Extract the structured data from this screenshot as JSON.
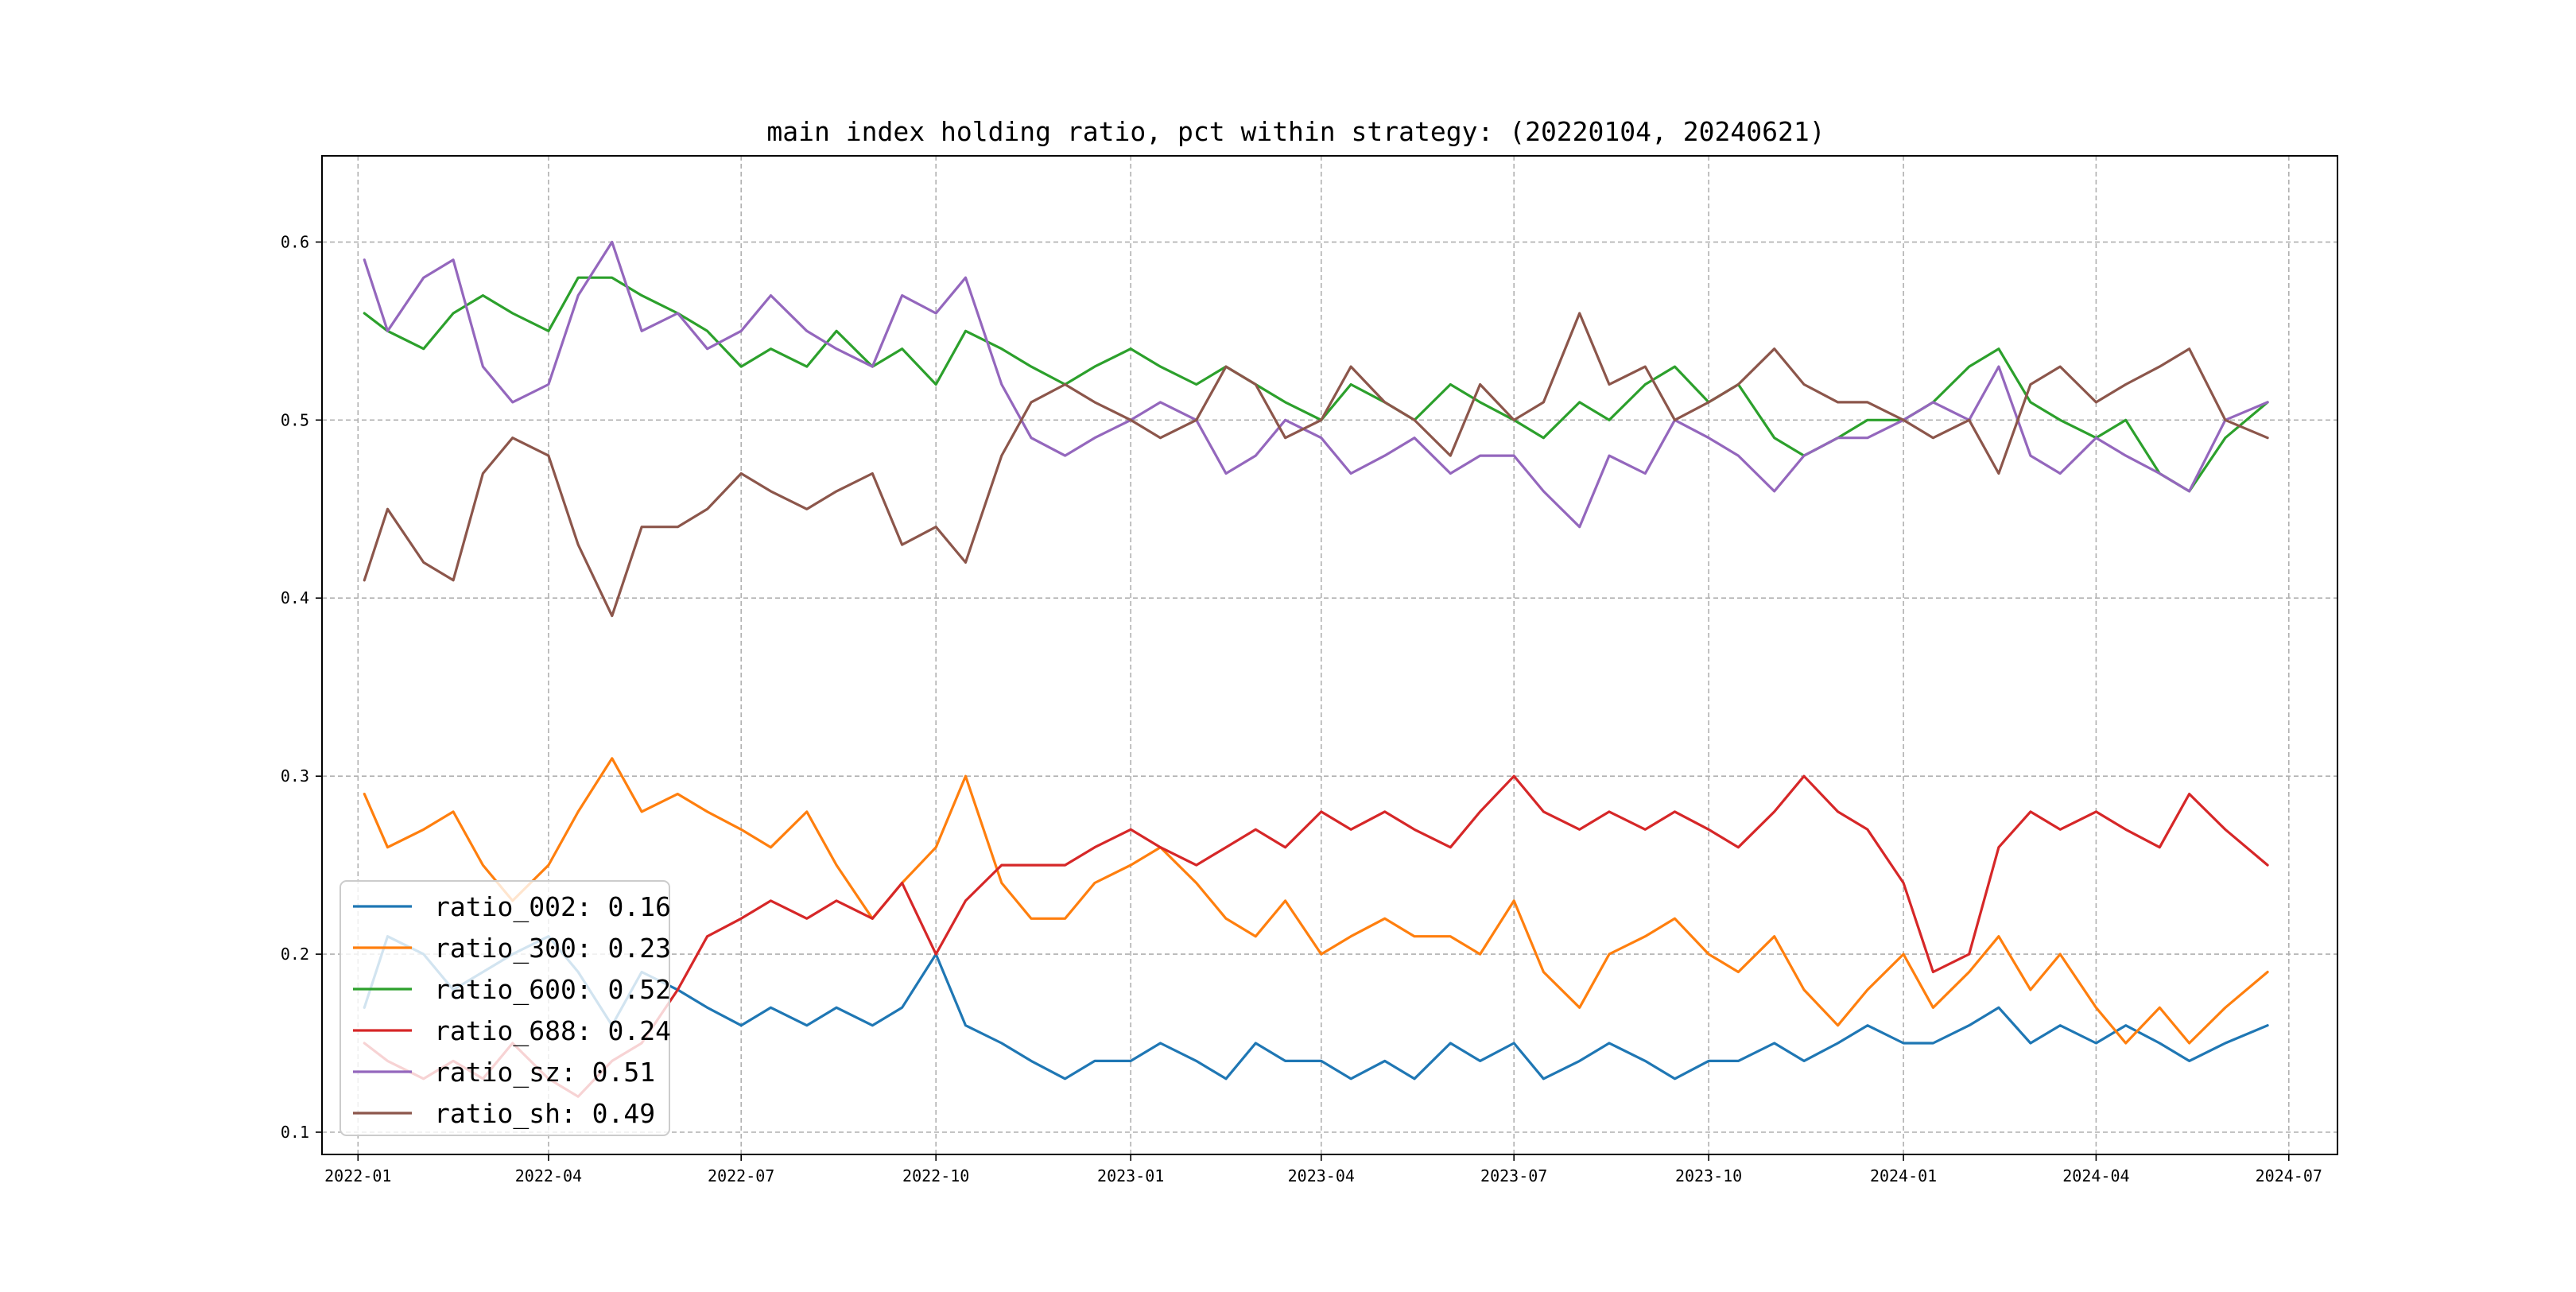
{
  "chart_data": {
    "type": "line",
    "title": "main index holding ratio, pct within strategy: (20220104, 20240621)",
    "xlabel": "",
    "ylabel": "",
    "x_range": [
      "2021-12-15",
      "2024-07-24"
    ],
    "ylim": [
      0.0875,
      0.6484
    ],
    "grid": true,
    "legend_position": "lower-left",
    "x_ticks": [
      {
        "date": "2022-01-01",
        "label": "2022-01"
      },
      {
        "date": "2022-04-01",
        "label": "2022-04"
      },
      {
        "date": "2022-07-01",
        "label": "2022-07"
      },
      {
        "date": "2022-10-01",
        "label": "2022-10"
      },
      {
        "date": "2023-01-01",
        "label": "2023-01"
      },
      {
        "date": "2023-04-01",
        "label": "2023-04"
      },
      {
        "date": "2023-07-01",
        "label": "2023-07"
      },
      {
        "date": "2023-10-01",
        "label": "2023-10"
      },
      {
        "date": "2024-01-01",
        "label": "2024-01"
      },
      {
        "date": "2024-04-01",
        "label": "2024-04"
      },
      {
        "date": "2024-07-01",
        "label": "2024-07"
      }
    ],
    "y_ticks": [
      {
        "value": 0.1,
        "label": "0.1"
      },
      {
        "value": 0.2,
        "label": "0.2"
      },
      {
        "value": 0.3,
        "label": "0.3"
      },
      {
        "value": 0.4,
        "label": "0.4"
      },
      {
        "value": 0.5,
        "label": "0.5"
      },
      {
        "value": 0.6,
        "label": "0.6"
      }
    ],
    "dates": [
      "2022-01-04",
      "2022-01-15",
      "2022-02-01",
      "2022-02-15",
      "2022-03-01",
      "2022-03-15",
      "2022-04-01",
      "2022-04-15",
      "2022-05-01",
      "2022-05-15",
      "2022-06-01",
      "2022-06-15",
      "2022-07-01",
      "2022-07-15",
      "2022-08-01",
      "2022-08-15",
      "2022-09-01",
      "2022-09-15",
      "2022-10-01",
      "2022-10-15",
      "2022-11-01",
      "2022-11-15",
      "2022-12-01",
      "2022-12-15",
      "2023-01-01",
      "2023-01-15",
      "2023-02-01",
      "2023-02-15",
      "2023-03-01",
      "2023-03-15",
      "2023-04-01",
      "2023-04-15",
      "2023-05-01",
      "2023-05-15",
      "2023-06-01",
      "2023-06-15",
      "2023-07-01",
      "2023-07-15",
      "2023-08-01",
      "2023-08-15",
      "2023-09-01",
      "2023-09-15",
      "2023-10-01",
      "2023-10-15",
      "2023-11-01",
      "2023-11-15",
      "2023-12-01",
      "2023-12-15",
      "2024-01-01",
      "2024-01-15",
      "2024-02-01",
      "2024-02-15",
      "2024-03-01",
      "2024-03-15",
      "2024-04-01",
      "2024-04-15",
      "2024-05-01",
      "2024-05-15",
      "2024-06-01",
      "2024-06-21"
    ],
    "series": [
      {
        "name": "ratio_002",
        "legend_label": "ratio_002: 0.16",
        "color": "#1f77b4",
        "values": [
          0.17,
          0.21,
          0.2,
          0.18,
          0.19,
          0.2,
          0.21,
          0.19,
          0.16,
          0.19,
          0.18,
          0.17,
          0.16,
          0.17,
          0.16,
          0.17,
          0.16,
          0.17,
          0.2,
          0.16,
          0.15,
          0.14,
          0.13,
          0.14,
          0.14,
          0.15,
          0.14,
          0.13,
          0.15,
          0.14,
          0.14,
          0.13,
          0.14,
          0.13,
          0.15,
          0.14,
          0.15,
          0.13,
          0.14,
          0.15,
          0.14,
          0.13,
          0.14,
          0.14,
          0.15,
          0.14,
          0.15,
          0.16,
          0.15,
          0.15,
          0.16,
          0.17,
          0.15,
          0.16,
          0.15,
          0.16,
          0.15,
          0.14,
          0.15,
          0.16
        ]
      },
      {
        "name": "ratio_300",
        "legend_label": "ratio_300: 0.23",
        "color": "#ff7f0e",
        "values": [
          0.29,
          0.26,
          0.27,
          0.28,
          0.25,
          0.23,
          0.25,
          0.28,
          0.31,
          0.28,
          0.29,
          0.28,
          0.27,
          0.26,
          0.28,
          0.25,
          0.22,
          0.24,
          0.26,
          0.3,
          0.24,
          0.22,
          0.22,
          0.24,
          0.25,
          0.26,
          0.24,
          0.22,
          0.21,
          0.23,
          0.2,
          0.21,
          0.22,
          0.21,
          0.21,
          0.2,
          0.23,
          0.19,
          0.17,
          0.2,
          0.21,
          0.22,
          0.2,
          0.19,
          0.21,
          0.18,
          0.16,
          0.18,
          0.2,
          0.17,
          0.19,
          0.21,
          0.18,
          0.2,
          0.17,
          0.15,
          0.17,
          0.15,
          0.17,
          0.19
        ]
      },
      {
        "name": "ratio_600",
        "legend_label": "ratio_600: 0.52",
        "color": "#2ca02c",
        "values": [
          0.56,
          0.55,
          0.54,
          0.56,
          0.57,
          0.56,
          0.55,
          0.58,
          0.58,
          0.57,
          0.56,
          0.55,
          0.53,
          0.54,
          0.53,
          0.55,
          0.53,
          0.54,
          0.52,
          0.55,
          0.54,
          0.53,
          0.52,
          0.53,
          0.54,
          0.53,
          0.52,
          0.53,
          0.52,
          0.51,
          0.5,
          0.52,
          0.51,
          0.5,
          0.52,
          0.51,
          0.5,
          0.49,
          0.51,
          0.5,
          0.52,
          0.53,
          0.51,
          0.52,
          0.49,
          0.48,
          0.49,
          0.5,
          0.5,
          0.51,
          0.53,
          0.54,
          0.51,
          0.5,
          0.49,
          0.5,
          0.47,
          0.46,
          0.49,
          0.51
        ]
      },
      {
        "name": "ratio_688",
        "legend_label": "ratio_688: 0.24",
        "color": "#d62728",
        "values": [
          0.15,
          0.14,
          0.13,
          0.14,
          0.13,
          0.15,
          0.13,
          0.12,
          0.14,
          0.15,
          0.18,
          0.21,
          0.22,
          0.23,
          0.22,
          0.23,
          0.22,
          0.24,
          0.2,
          0.23,
          0.25,
          0.25,
          0.25,
          0.26,
          0.27,
          0.26,
          0.25,
          0.26,
          0.27,
          0.26,
          0.28,
          0.27,
          0.28,
          0.27,
          0.26,
          0.28,
          0.3,
          0.28,
          0.27,
          0.28,
          0.27,
          0.28,
          0.27,
          0.26,
          0.28,
          0.3,
          0.28,
          0.27,
          0.24,
          0.19,
          0.2,
          0.26,
          0.28,
          0.27,
          0.28,
          0.27,
          0.26,
          0.29,
          0.27,
          0.25
        ]
      },
      {
        "name": "ratio_sz",
        "legend_label": "ratio_sz: 0.51",
        "color": "#9467bd",
        "values": [
          0.59,
          0.55,
          0.58,
          0.59,
          0.53,
          0.51,
          0.52,
          0.57,
          0.6,
          0.55,
          0.56,
          0.54,
          0.55,
          0.57,
          0.55,
          0.54,
          0.53,
          0.57,
          0.56,
          0.58,
          0.52,
          0.49,
          0.48,
          0.49,
          0.5,
          0.51,
          0.5,
          0.47,
          0.48,
          0.5,
          0.49,
          0.47,
          0.48,
          0.49,
          0.47,
          0.48,
          0.48,
          0.46,
          0.44,
          0.48,
          0.47,
          0.5,
          0.49,
          0.48,
          0.46,
          0.48,
          0.49,
          0.49,
          0.5,
          0.51,
          0.5,
          0.53,
          0.48,
          0.47,
          0.49,
          0.48,
          0.47,
          0.46,
          0.5,
          0.51
        ]
      },
      {
        "name": "ratio_sh",
        "legend_label": "ratio_sh: 0.49",
        "color": "#8c564b",
        "values": [
          0.41,
          0.45,
          0.42,
          0.41,
          0.47,
          0.49,
          0.48,
          0.43,
          0.39,
          0.44,
          0.44,
          0.45,
          0.47,
          0.46,
          0.45,
          0.46,
          0.47,
          0.43,
          0.44,
          0.42,
          0.48,
          0.51,
          0.52,
          0.51,
          0.5,
          0.49,
          0.5,
          0.53,
          0.52,
          0.49,
          0.5,
          0.53,
          0.51,
          0.5,
          0.48,
          0.52,
          0.5,
          0.51,
          0.56,
          0.52,
          0.53,
          0.5,
          0.51,
          0.52,
          0.54,
          0.52,
          0.51,
          0.51,
          0.5,
          0.49,
          0.5,
          0.47,
          0.52,
          0.53,
          0.51,
          0.52,
          0.53,
          0.54,
          0.5,
          0.49
        ]
      }
    ]
  }
}
